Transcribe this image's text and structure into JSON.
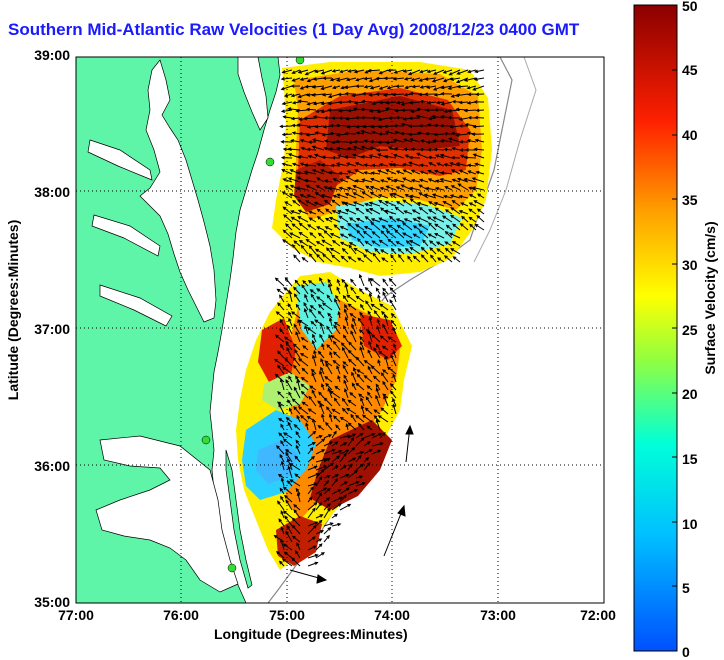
{
  "title": "Southern Mid-Atlantic Raw Velocities (1 Day Avg) 2008/12/23 0400 GMT",
  "xlabel": "Longitude (Degrees:Minutes)",
  "ylabel": "Latitude (Degrees:Minutes)",
  "colorbar": {
    "label": "Surface Velocity (cm/s)",
    "ticks": [
      "0",
      "5",
      "10",
      "15",
      "20",
      "25",
      "30",
      "35",
      "40",
      "45",
      "50"
    ],
    "min": 0,
    "max": 50
  },
  "x_ticks": [
    "77:00",
    "76:00",
    "75:00",
    "74:00",
    "73:00",
    "72:00"
  ],
  "y_ticks": [
    "39:00",
    "38:00",
    "37:00",
    "36:00",
    "35:00"
  ],
  "colors": {
    "land": "#5ff5a8",
    "ocean": "#ffffff",
    "grid": "#000000",
    "title": "#1a1aff",
    "station": "#33dd33"
  }
}
